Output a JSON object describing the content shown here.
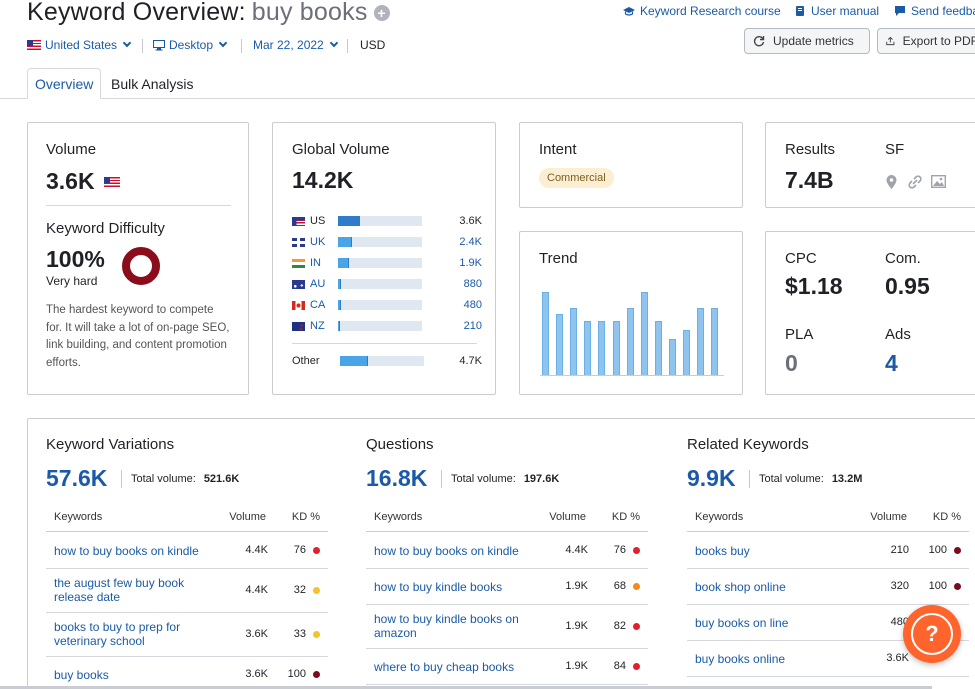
{
  "header": {
    "title_prefix": "Keyword Overview:",
    "keyword": "buy books",
    "add_icon": "plus-icon"
  },
  "top_links": [
    {
      "label": "Keyword Research course",
      "icon": "graduation-cap-icon"
    },
    {
      "label": "User manual",
      "icon": "book-icon"
    },
    {
      "label": "Send feedba",
      "icon": "chat-bubble-icon"
    }
  ],
  "filters": {
    "country": "United States",
    "device": "Desktop",
    "date": "Mar 22, 2022",
    "currency": "USD"
  },
  "buttons": {
    "update_metrics": "Update metrics",
    "export": "Export to PDF"
  },
  "tabs": [
    {
      "label": "Overview",
      "active": true
    },
    {
      "label": "Bulk Analysis",
      "active": false
    }
  ],
  "volume_card": {
    "label": "Volume",
    "value": "3.6K",
    "kd_label": "Keyword Difficulty",
    "kd_value": "100%",
    "kd_text": "Very hard",
    "kd_description": "The hardest keyword to compete for. It will take a lot of on-page SEO, link building, and content promotion efforts.",
    "kd_percent": 100
  },
  "global_volume_card": {
    "label": "Global Volume",
    "value": "14.2K",
    "rows": [
      {
        "code": "US",
        "value": "3.6K",
        "fraction": 0.26,
        "dark": true
      },
      {
        "code": "UK",
        "value": "2.4K",
        "fraction": 0.17,
        "dark": false
      },
      {
        "code": "IN",
        "value": "1.9K",
        "fraction": 0.13,
        "dark": false
      },
      {
        "code": "AU",
        "value": "880",
        "fraction": 0.04,
        "dark": false
      },
      {
        "code": "CA",
        "value": "480",
        "fraction": 0.03,
        "dark": false
      },
      {
        "code": "NZ",
        "value": "210",
        "fraction": 0.02,
        "dark": false
      }
    ],
    "other_label": "Other",
    "other_value": "4.7K",
    "other_fraction": 0.33
  },
  "intent_card": {
    "label": "Intent",
    "pill": "Commercial"
  },
  "results_card": {
    "results_label": "Results",
    "results_value": "7.4B",
    "sf_label": "SF",
    "sf_icons": [
      "map-pin-icon",
      "link-icon",
      "image-icon"
    ]
  },
  "trend_card": {
    "label": "Trend",
    "values": [
      0.92,
      0.68,
      0.75,
      0.6,
      0.6,
      0.6,
      0.75,
      0.92,
      0.6,
      0.4,
      0.5,
      0.75,
      0.75
    ]
  },
  "cpc_card": {
    "cpc_label": "CPC",
    "cpc_value": "$1.18",
    "com_label": "Com.",
    "com_value": "0.95",
    "pla_label": "PLA",
    "pla_value": "0",
    "ads_label": "Ads",
    "ads_value": "4"
  },
  "sections": [
    {
      "title": "Keyword Variations",
      "count": "57.6K",
      "total_label": "Total volume:",
      "total_value": "521.6K",
      "headers": {
        "keywords": "Keywords",
        "volume": "Volume",
        "kd": "KD %"
      },
      "rows": [
        {
          "keyword": "how to buy books on kindle",
          "volume": "4.4K",
          "kd": "76",
          "color": "#e0202f"
        },
        {
          "keyword": "the august few buy book release date",
          "volume": "4.4K",
          "kd": "32",
          "color": "#f2c230"
        },
        {
          "keyword": "books to buy to prep for veterinary school",
          "volume": "3.6K",
          "kd": "33",
          "color": "#f2c230"
        },
        {
          "keyword": "buy books",
          "volume": "3.6K",
          "kd": "100",
          "color": "#7a0c1c"
        }
      ]
    },
    {
      "title": "Questions",
      "count": "16.8K",
      "total_label": "Total volume:",
      "total_value": "197.6K",
      "headers": {
        "keywords": "Keywords",
        "volume": "Volume",
        "kd": "KD %"
      },
      "rows": [
        {
          "keyword": "how to buy books on kindle",
          "volume": "4.4K",
          "kd": "76",
          "color": "#e0202f"
        },
        {
          "keyword": "how to buy kindle books",
          "volume": "1.9K",
          "kd": "68",
          "color": "#f08a24"
        },
        {
          "keyword": "how to buy kindle books on amazon",
          "volume": "1.9K",
          "kd": "82",
          "color": "#e0202f"
        },
        {
          "keyword": "where to buy cheap books",
          "volume": "1.9K",
          "kd": "84",
          "color": "#e0202f"
        }
      ]
    },
    {
      "title": "Related Keywords",
      "count": "9.9K",
      "total_label": "Total volume:",
      "total_value": "13.2M",
      "headers": {
        "keywords": "Keywords",
        "volume": "Volume",
        "kd": "KD %"
      },
      "rows": [
        {
          "keyword": "books buy",
          "volume": "210",
          "kd": "100",
          "color": "#7a0c1c"
        },
        {
          "keyword": "book shop online",
          "volume": "320",
          "kd": "100",
          "color": "#7a0c1c"
        },
        {
          "keyword": "buy books on line",
          "volume": "480",
          "kd": "",
          "color": ""
        },
        {
          "keyword": "buy books online",
          "volume": "3.6K",
          "kd": "",
          "color": ""
        }
      ]
    }
  ],
  "help_button": {
    "label": "?"
  },
  "colors": {
    "accent": "#1a5aa7",
    "help": "#ff642d",
    "kd_ring": "#8b0d1c"
  }
}
